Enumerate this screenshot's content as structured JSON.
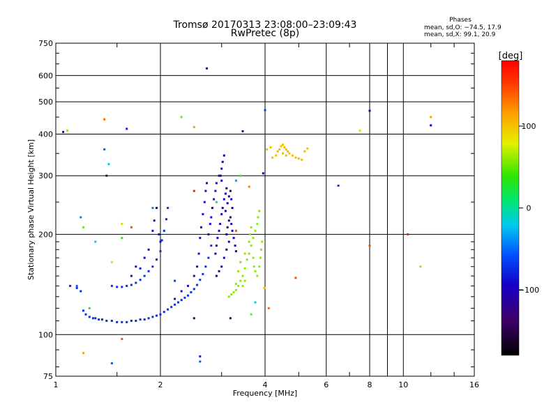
{
  "chart_data": {
    "type": "scatter",
    "title": "Tromsø 20170313 23:08:00–23:09:43",
    "subtitle": "RwPretec (8p)",
    "xlabel": "Frequency [MHz]",
    "ylabel": "Stationary phase Virtual Height [km]",
    "x_scale": "log",
    "y_scale": "log",
    "xlim": [
      1,
      16
    ],
    "ylim": [
      75,
      750
    ],
    "x_ticks": [
      1,
      2,
      4,
      6,
      8,
      10,
      16
    ],
    "x_tick_labels": [
      "1",
      "2",
      "4",
      "6",
      "8",
      "10",
      "16"
    ],
    "y_ticks": [
      75,
      100,
      200,
      300,
      400,
      500,
      600,
      750
    ],
    "y_tick_labels": [
      "75",
      "100",
      "200",
      "300",
      "400",
      "500",
      "600",
      "750"
    ],
    "phase_box": {
      "title": "Phases",
      "line_o": "mean, sd,O: −74.5, 17.9",
      "line_x": "mean, sd,X:  99.1, 20.9"
    },
    "colorbar": {
      "label": "[deg]",
      "range": [
        -180,
        180
      ],
      "ticks": [
        100,
        0,
        -100
      ],
      "tick_labels": [
        "100",
        "0",
        "−100"
      ]
    },
    "series": [
      {
        "name": "trace-1",
        "phase": -85,
        "points": [
          [
            1.2,
            118
          ],
          [
            1.22,
            115
          ],
          [
            1.25,
            113
          ],
          [
            1.28,
            112
          ],
          [
            1.3,
            112
          ],
          [
            1.33,
            111
          ],
          [
            1.36,
            111
          ],
          [
            1.4,
            110
          ],
          [
            1.45,
            110
          ],
          [
            1.5,
            109
          ],
          [
            1.55,
            109
          ],
          [
            1.6,
            109
          ],
          [
            1.65,
            110
          ],
          [
            1.7,
            110
          ],
          [
            1.75,
            111
          ],
          [
            1.8,
            111
          ],
          [
            1.85,
            112
          ],
          [
            1.9,
            113
          ],
          [
            1.95,
            114
          ],
          [
            2.0,
            115
          ],
          [
            2.05,
            117
          ],
          [
            2.1,
            119
          ],
          [
            2.15,
            121
          ],
          [
            2.2,
            123
          ],
          [
            2.25,
            125
          ],
          [
            2.3,
            127
          ],
          [
            2.35,
            129
          ],
          [
            2.4,
            131
          ],
          [
            2.45,
            134
          ],
          [
            2.5,
            137
          ],
          [
            2.55,
            141
          ],
          [
            2.6,
            146
          ],
          [
            2.65,
            152
          ],
          [
            2.7,
            160
          ],
          [
            2.75,
            170
          ],
          [
            2.8,
            185
          ],
          [
            1.45,
            140
          ],
          [
            1.5,
            139
          ],
          [
            1.55,
            139
          ],
          [
            1.6,
            140
          ],
          [
            1.65,
            141
          ],
          [
            1.7,
            143
          ],
          [
            1.75,
            146
          ],
          [
            1.8,
            150
          ],
          [
            1.85,
            155
          ],
          [
            1.9,
            160
          ],
          [
            1.95,
            168
          ],
          [
            2.0,
            178
          ],
          [
            2.02,
            192
          ],
          [
            2.05,
            205
          ],
          [
            2.08,
            222
          ],
          [
            2.1,
            240
          ],
          [
            1.15,
            138
          ],
          [
            1.18,
            135
          ],
          [
            1.1,
            140
          ]
        ]
      },
      {
        "name": "trace-2",
        "phase": -95,
        "points": [
          [
            2.6,
            195
          ],
          [
            2.62,
            210
          ],
          [
            2.65,
            230
          ],
          [
            2.68,
            250
          ],
          [
            2.7,
            270
          ],
          [
            2.72,
            285
          ],
          [
            2.75,
            200
          ],
          [
            2.78,
            215
          ],
          [
            2.8,
            225
          ],
          [
            2.82,
            240
          ],
          [
            2.85,
            255
          ],
          [
            2.88,
            270
          ],
          [
            2.9,
            285
          ],
          [
            2.95,
            300
          ],
          [
            2.5,
            150
          ],
          [
            2.55,
            160
          ],
          [
            2.58,
            175
          ],
          [
            2.4,
            140
          ],
          [
            2.3,
            135
          ],
          [
            2.2,
            128
          ],
          [
            1.9,
            205
          ],
          [
            1.92,
            220
          ],
          [
            1.95,
            240
          ],
          [
            1.98,
            200
          ],
          [
            2.0,
            190
          ],
          [
            1.85,
            180
          ],
          [
            1.8,
            170
          ],
          [
            1.7,
            160
          ],
          [
            1.75,
            158
          ],
          [
            1.65,
            150
          ]
        ]
      },
      {
        "name": "trace-3",
        "phase": -110,
        "points": [
          [
            2.88,
            175
          ],
          [
            2.9,
            185
          ],
          [
            2.92,
            195
          ],
          [
            2.95,
            205
          ],
          [
            2.97,
            215
          ],
          [
            3.0,
            230
          ],
          [
            3.02,
            240
          ],
          [
            3.05,
            255
          ],
          [
            3.08,
            265
          ],
          [
            3.1,
            275
          ],
          [
            3.0,
            290
          ],
          [
            2.98,
            300
          ],
          [
            3.0,
            315
          ],
          [
            3.02,
            330
          ],
          [
            3.05,
            345
          ],
          [
            3.1,
            200
          ],
          [
            3.12,
            210
          ],
          [
            3.15,
            220
          ],
          [
            3.18,
            225
          ],
          [
            3.2,
            215
          ],
          [
            3.22,
            205
          ],
          [
            3.25,
            195
          ],
          [
            3.28,
            185
          ],
          [
            3.3,
            178
          ],
          [
            3.15,
            190
          ],
          [
            3.1,
            180
          ],
          [
            3.05,
            170
          ],
          [
            3.0,
            160
          ],
          [
            2.95,
            155
          ],
          [
            2.9,
            150
          ],
          [
            3.08,
            235
          ],
          [
            3.12,
            248
          ],
          [
            3.15,
            260
          ],
          [
            3.18,
            270
          ],
          [
            3.2,
            255
          ],
          [
            3.22,
            240
          ]
        ]
      },
      {
        "name": "trace-4",
        "phase": 60,
        "points": [
          [
            3.15,
            130
          ],
          [
            3.2,
            132
          ],
          [
            3.25,
            134
          ],
          [
            3.3,
            136
          ],
          [
            3.35,
            140
          ],
          [
            3.4,
            145
          ],
          [
            3.45,
            150
          ],
          [
            3.5,
            158
          ],
          [
            3.55,
            168
          ],
          [
            3.6,
            175
          ],
          [
            3.65,
            185
          ],
          [
            3.7,
            195
          ],
          [
            3.75,
            205
          ],
          [
            3.8,
            215
          ],
          [
            3.82,
            225
          ],
          [
            3.85,
            235
          ],
          [
            3.6,
            190
          ],
          [
            3.62,
            200
          ],
          [
            3.65,
            210
          ],
          [
            3.7,
            170
          ],
          [
            3.72,
            160
          ],
          [
            3.75,
            155
          ],
          [
            3.8,
            150
          ],
          [
            3.85,
            160
          ],
          [
            3.88,
            170
          ],
          [
            3.9,
            180
          ],
          [
            3.92,
            190
          ],
          [
            3.5,
            145
          ],
          [
            3.45,
            140
          ],
          [
            3.3,
            142
          ],
          [
            3.35,
            155
          ],
          [
            3.4,
            165
          ],
          [
            3.5,
            175
          ]
        ]
      },
      {
        "name": "trace-5",
        "phase": 110,
        "points": [
          [
            4.4,
            360
          ],
          [
            4.45,
            368
          ],
          [
            4.5,
            372
          ],
          [
            4.55,
            365
          ],
          [
            4.6,
            360
          ],
          [
            4.65,
            355
          ],
          [
            4.7,
            350
          ],
          [
            4.8,
            345
          ],
          [
            4.9,
            340
          ],
          [
            5.0,
            338
          ],
          [
            5.1,
            335
          ],
          [
            4.35,
            355
          ],
          [
            4.3,
            345
          ],
          [
            4.2,
            340
          ],
          [
            4.5,
            350
          ],
          [
            4.6,
            345
          ],
          [
            5.2,
            355
          ],
          [
            5.3,
            362
          ],
          [
            4.15,
            365
          ],
          [
            4.05,
            360
          ]
        ]
      },
      {
        "name": "scatter",
        "phase": 0,
        "points": [
          [
            1.05,
            406,
            -110
          ],
          [
            1.08,
            410,
            60
          ],
          [
            1.38,
            443,
            140
          ],
          [
            1.45,
            165,
            80
          ],
          [
            1.3,
            190,
            -40
          ],
          [
            1.25,
            120,
            20
          ],
          [
            1.6,
            415,
            -90
          ],
          [
            1.9,
            240,
            -60
          ],
          [
            2.2,
            145,
            -80
          ],
          [
            2.3,
            450,
            50
          ],
          [
            2.5,
            420,
            120
          ],
          [
            2.6,
            86,
            -90
          ],
          [
            2.6,
            83,
            -70
          ],
          [
            2.5,
            112,
            -130
          ],
          [
            2.72,
            630,
            -110
          ],
          [
            3.18,
            112,
            -130
          ],
          [
            3.45,
            408,
            -120
          ],
          [
            3.4,
            300,
            40
          ],
          [
            3.3,
            290,
            -50
          ],
          [
            3.6,
            278,
            130
          ],
          [
            4.0,
            472,
            -80
          ],
          [
            3.95,
            305,
            -100
          ],
          [
            3.98,
            138,
            110
          ],
          [
            4.1,
            120,
            140
          ],
          [
            4.9,
            148,
            150
          ],
          [
            6.5,
            280,
            -80
          ],
          [
            7.5,
            410,
            80
          ],
          [
            8.0,
            470,
            -120
          ],
          [
            8.0,
            185,
            150
          ],
          [
            10.3,
            200,
            170
          ],
          [
            11.2,
            160,
            60
          ],
          [
            12.0,
            450,
            120
          ],
          [
            12.0,
            425,
            -100
          ],
          [
            1.55,
            97,
            150
          ],
          [
            1.2,
            88,
            120
          ],
          [
            1.45,
            82,
            -70
          ],
          [
            1.55,
            195,
            30
          ],
          [
            1.55,
            215,
            100
          ],
          [
            1.65,
            210,
            150
          ],
          [
            1.4,
            300,
            -140
          ],
          [
            1.42,
            325,
            -30
          ],
          [
            1.38,
            360,
            -70
          ],
          [
            1.2,
            210,
            50
          ],
          [
            1.18,
            225,
            -60
          ],
          [
            1.15,
            140,
            -70
          ],
          [
            3.65,
            115,
            50
          ],
          [
            3.75,
            125,
            -30
          ],
          [
            3.3,
            205,
            150
          ],
          [
            2.9,
            250,
            -20
          ],
          [
            2.5,
            270,
            170
          ]
        ]
      }
    ]
  }
}
